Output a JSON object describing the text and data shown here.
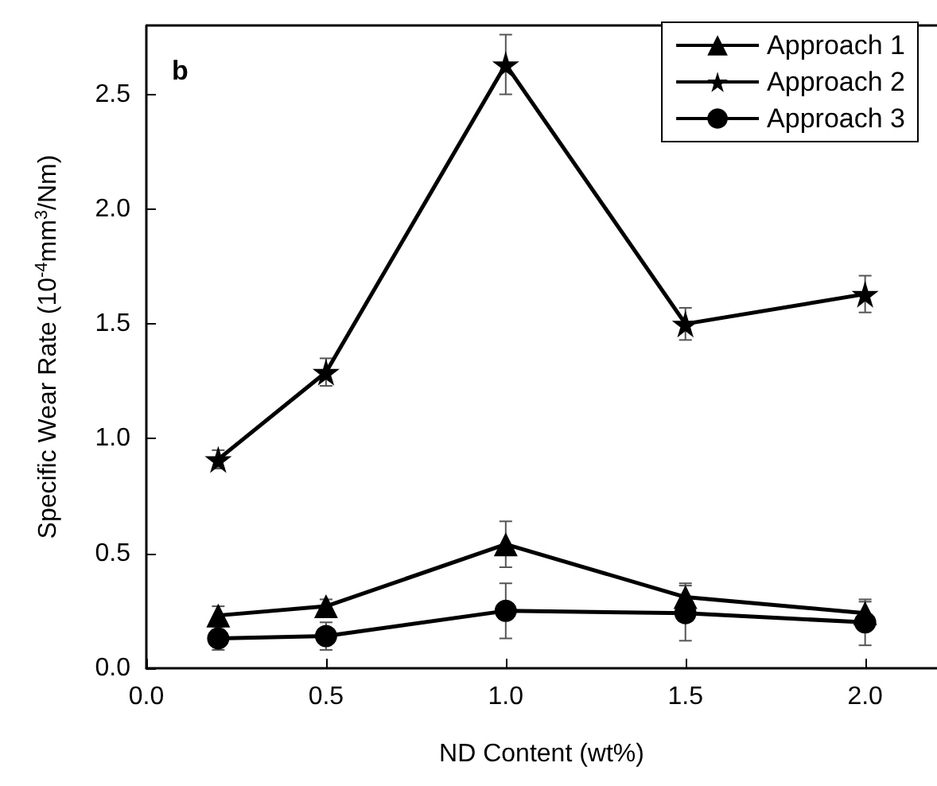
{
  "chart_data": {
    "type": "line",
    "xlabel": "ND Content (wt%)",
    "ylabel": "Specific Wear Rate (10$^{-4}$mm$^{3}$/Nm)",
    "annotations": [
      "b"
    ],
    "x": [
      0.2,
      0.5,
      1.0,
      1.5,
      2.0
    ],
    "xlim": [
      0,
      2.2
    ],
    "xticks": [
      {
        "value": 0,
        "label": "0.0"
      },
      0.5,
      {
        "value": 1,
        "label": "1.0"
      },
      1.5,
      {
        "value": 2,
        "label": "2.0"
      }
    ],
    "ylim": [
      0,
      2.8
    ],
    "yticks": [
      {
        "value": 0,
        "label": "0.0"
      },
      0.5,
      {
        "value": 1,
        "label": "1.0"
      },
      1.5,
      {
        "value": 2,
        "label": "2.0"
      },
      2.5
    ],
    "grid": false,
    "legend": "top right",
    "line_style": "solid",
    "series": [
      {
        "name": "Approach 1",
        "color": "#000000",
        "marker": "triangle",
        "values": [
          0.23,
          0.27,
          0.54,
          0.31,
          0.24
        ],
        "errors": [
          0.04,
          0.03,
          0.1,
          0.06,
          0.05
        ]
      },
      {
        "name": "Approach 2",
        "color": "#000000",
        "marker": "star",
        "values": [
          0.91,
          1.29,
          2.63,
          1.5,
          1.63
        ],
        "errors": [
          0.04,
          0.06,
          0.13,
          0.07,
          0.08
        ]
      },
      {
        "name": "Approach 3",
        "color": "#000000",
        "marker": "circle",
        "values": [
          0.13,
          0.14,
          0.25,
          0.24,
          0.2
        ],
        "errors": [
          0.05,
          0.06,
          0.12,
          0.12,
          0.1
        ]
      }
    ]
  }
}
